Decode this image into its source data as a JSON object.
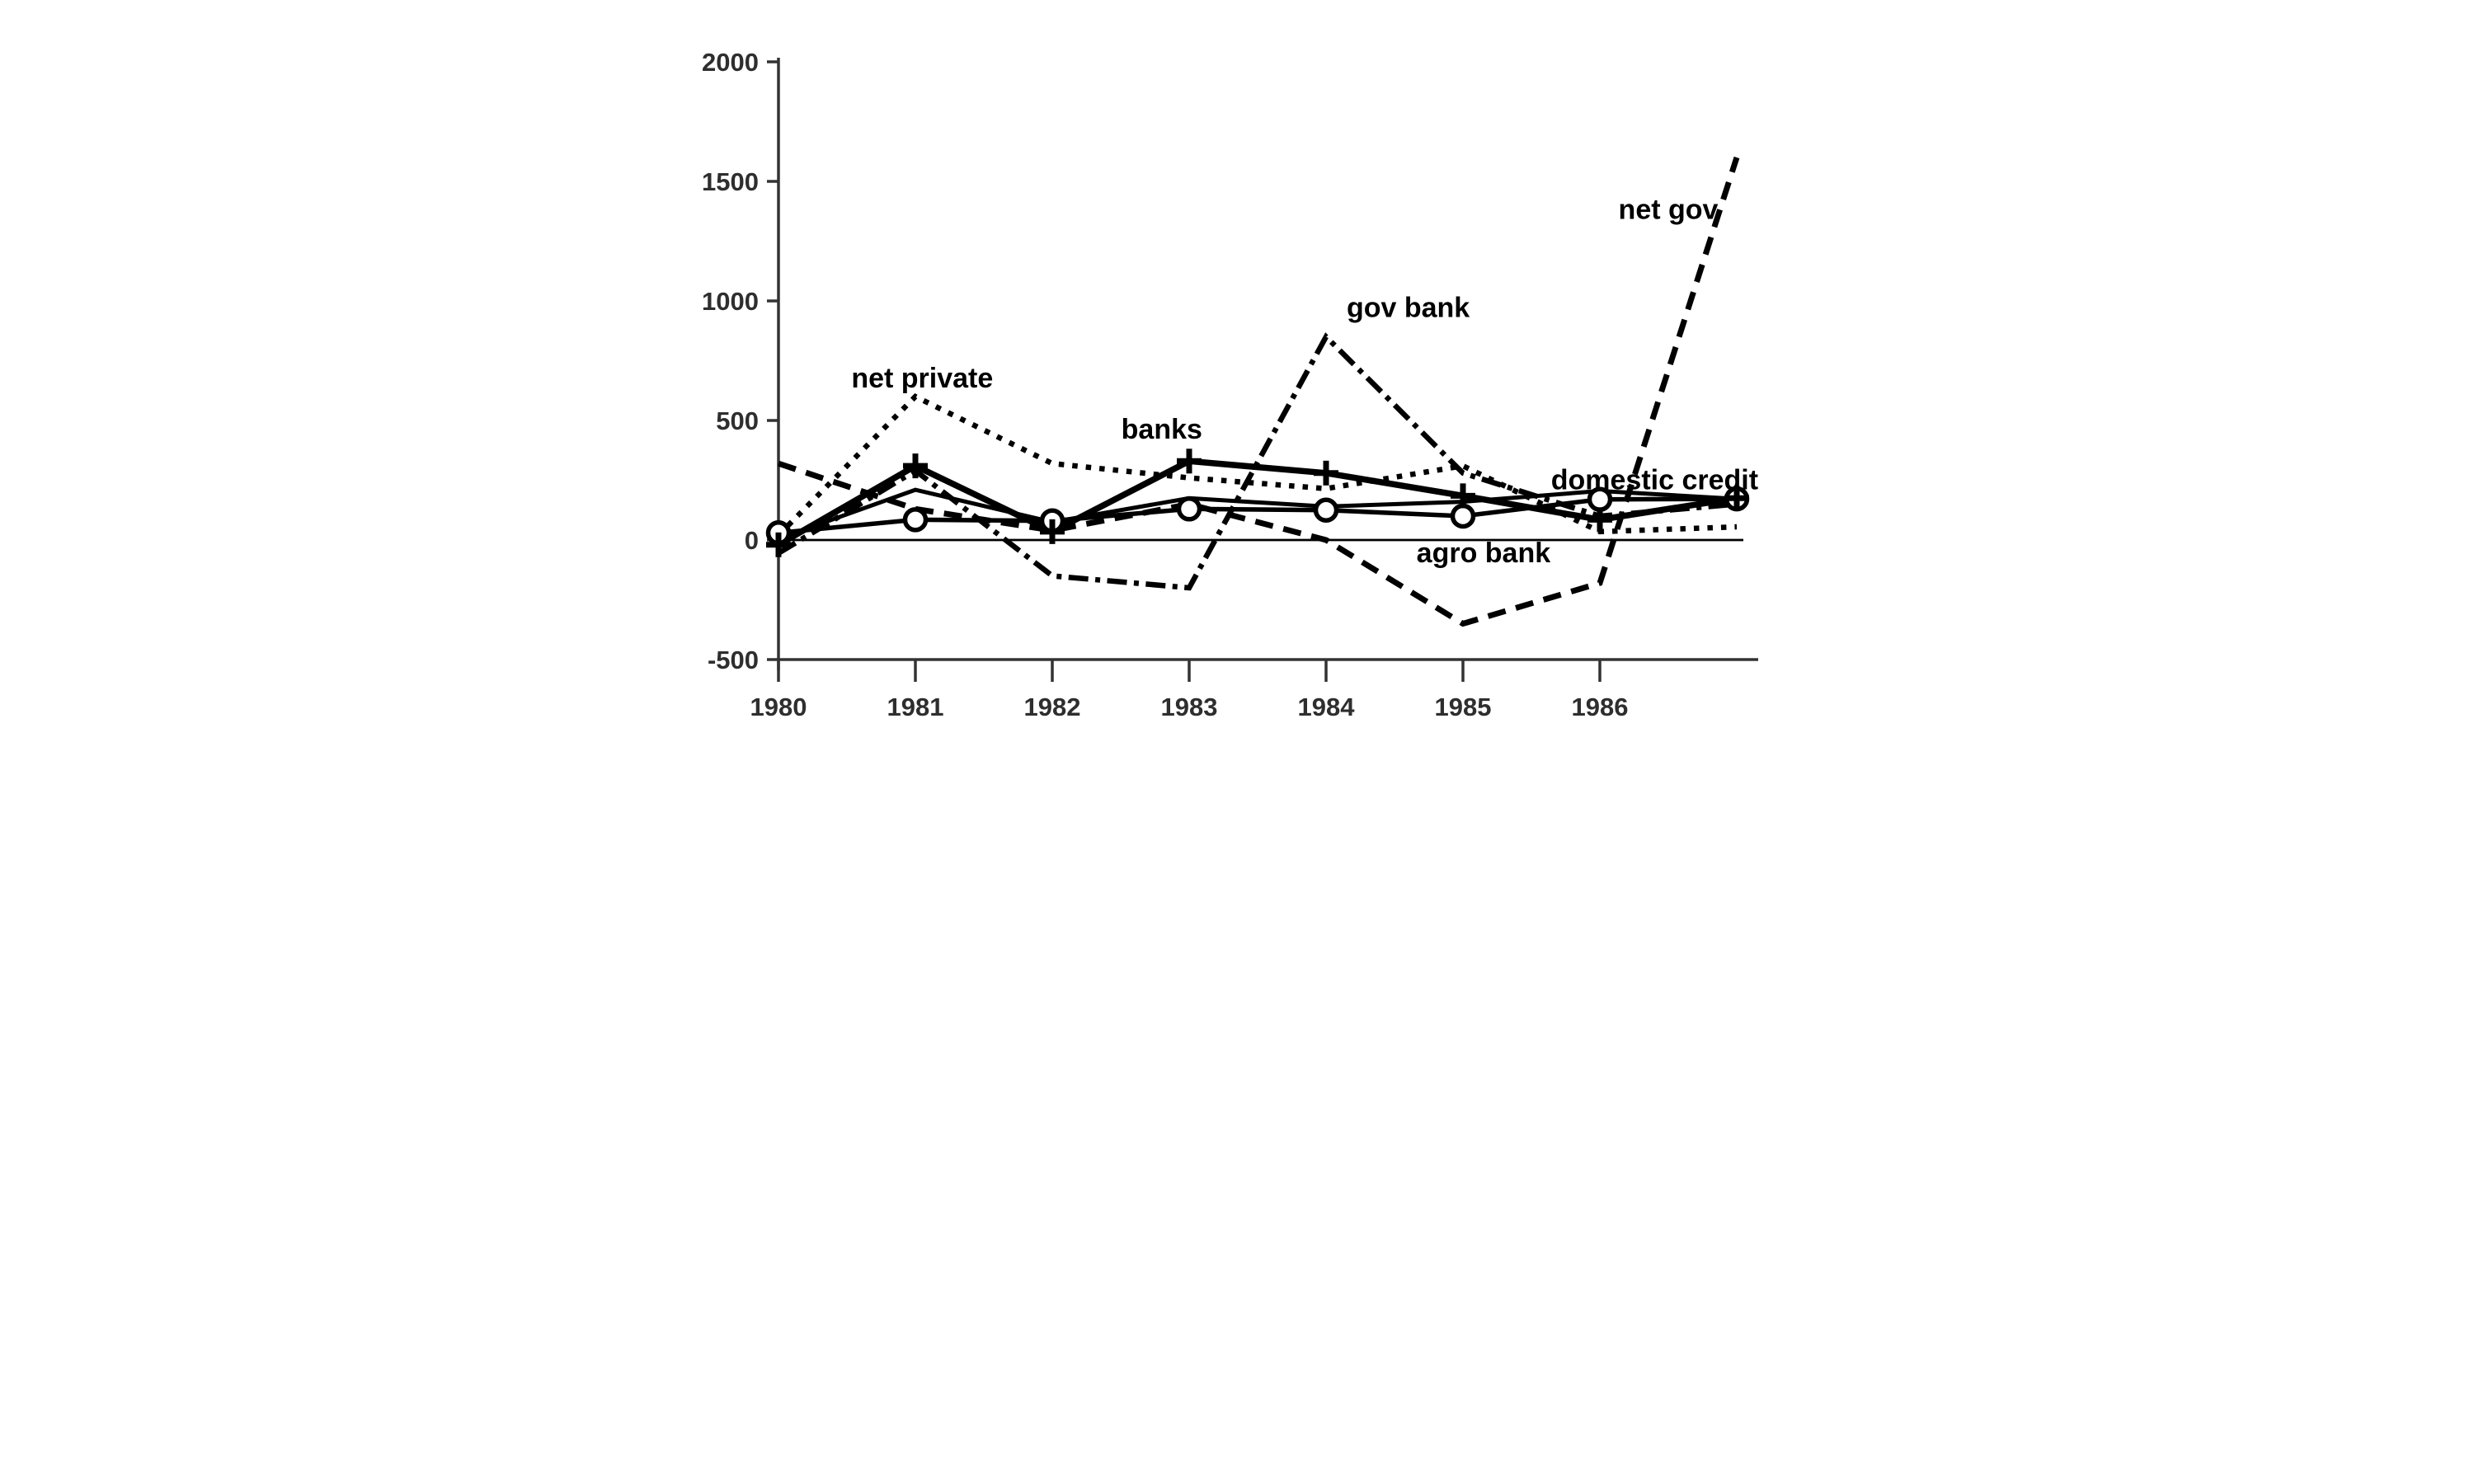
{
  "chart_data": {
    "type": "line",
    "title": "",
    "xlabel": "",
    "ylabel": "",
    "x": [
      1980,
      1981,
      1982,
      1983,
      1984,
      1985,
      1986,
      1987
    ],
    "x_tick_labels": [
      "1980",
      "1981",
      "1982",
      "1983",
      "1984",
      "1985",
      "1986"
    ],
    "y_ticks": [
      -500,
      0,
      500,
      1000,
      1500,
      2000
    ],
    "ylim": [
      -500,
      2000
    ],
    "xlim": [
      1980,
      1987.17
    ],
    "grid": false,
    "legend": "inline-labels",
    "zero_line": true,
    "series": [
      {
        "name": "net_private",
        "label": "net private",
        "line_style": "dotted",
        "marker": "none",
        "color": "#000000",
        "values": [
          20,
          600,
          320,
          260,
          215,
          310,
          35,
          55
        ]
      },
      {
        "name": "net_gov",
        "label": "net gov",
        "line_style": "dashed",
        "marker": "none",
        "color": "#000000",
        "values": [
          320,
          130,
          40,
          150,
          0,
          -350,
          -180,
          1600
        ]
      },
      {
        "name": "gov_bank",
        "label": "gov bank",
        "line_style": "dash-dot",
        "marker": "none",
        "color": "#000000",
        "values": [
          -55,
          290,
          -150,
          -200,
          850,
          280,
          100,
          150
        ]
      },
      {
        "name": "domestic_credit",
        "label": "domestic credit",
        "line_style": "solid",
        "marker": "none",
        "color": "#000000",
        "values": [
          5,
          210,
          75,
          175,
          140,
          160,
          205,
          172
        ]
      },
      {
        "name": "agro_bank",
        "label": "agro bank",
        "line_style": "solid",
        "marker": "circle",
        "color": "#000000",
        "values": [
          30,
          85,
          80,
          130,
          125,
          100,
          170,
          172
        ]
      },
      {
        "name": "banks",
        "label": "banks",
        "line_style": "solid",
        "marker": "plus",
        "color": "#000000",
        "values": [
          -20,
          310,
          35,
          330,
          280,
          185,
          85,
          175
        ]
      }
    ],
    "annotations": [
      {
        "text": "net private",
        "x": 1981.05,
        "y": 680,
        "series": "net_private"
      },
      {
        "text": "banks",
        "x": 1982.8,
        "y": 465,
        "series": "banks"
      },
      {
        "text": "gov bank",
        "x": 1984.6,
        "y": 975,
        "series": "gov_bank"
      },
      {
        "text": "net gov",
        "x": 1986.5,
        "y": 1385,
        "series": "net_gov"
      },
      {
        "text": "domestic credit",
        "x": 1986.4,
        "y": 253,
        "series": "domestic_credit"
      },
      {
        "text": "agro bank",
        "x": 1985.15,
        "y": -52,
        "series": "agro_bank"
      }
    ],
    "colors": {
      "line": "#000000",
      "axis": "#333333",
      "tick_label": "#2e2e2e",
      "background": "#ffffff"
    }
  }
}
